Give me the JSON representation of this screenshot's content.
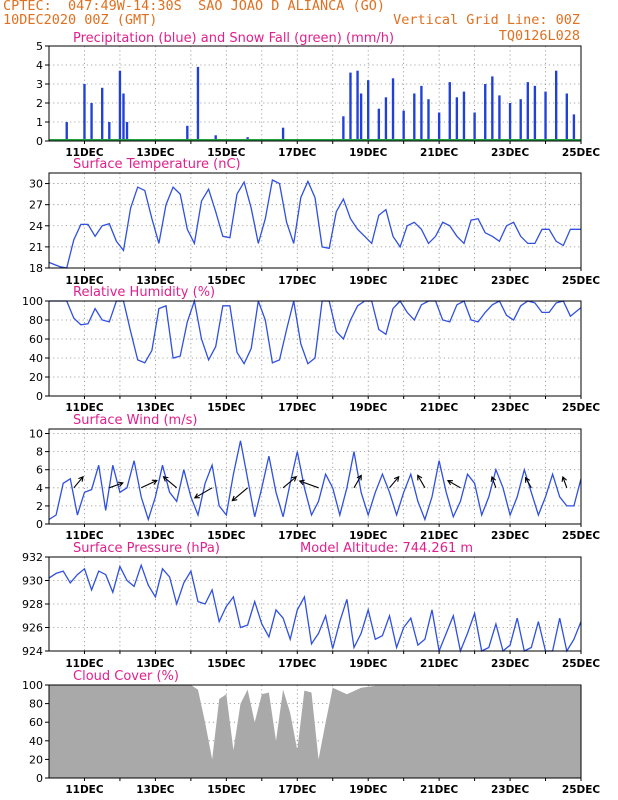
{
  "header": {
    "left_line1": "CPTEC:  047:49W-14:30S  SAO JOAO D ALIANCA (GO)",
    "left_line2": "10DEC2020 00Z (GMT)",
    "right_line2": "Vertical Grid Line: 00Z",
    "right_line3": "TQ0126L028"
  },
  "colors": {
    "header": "#e07020",
    "title": "#e0208c",
    "line": "#3050e0",
    "precip": "#2040d8",
    "snow": "#20a040",
    "cloud": "#a9a9a9",
    "grid": "#8a8a8a"
  },
  "x_axis": {
    "start": "2020-12-10T00:00Z",
    "end": "2020-12-25T00:00Z",
    "tick_labels": [
      "11DEC",
      "13DEC",
      "15DEC",
      "17DEC",
      "19DEC",
      "21DEC",
      "23DEC",
      "25DEC"
    ]
  },
  "chart_data": [
    {
      "type": "bar",
      "title": "Precipitation (blue) and Snow Fall (green) (mm/h)",
      "ylim": [
        0,
        5
      ],
      "yticks": [
        "0",
        "1",
        "2",
        "3",
        "4",
        "5"
      ],
      "series": [
        {
          "name": "Precipitation",
          "color": "#2040d8",
          "x_days": [
            0.5,
            1.0,
            1.2,
            1.5,
            1.7,
            2.0,
            2.1,
            2.2,
            3.9,
            4.2,
            4.7,
            5.6,
            6.6,
            8.3,
            8.5,
            8.7,
            8.8,
            9.0,
            9.3,
            9.5,
            9.7,
            10.0,
            10.3,
            10.5,
            10.7,
            11.0,
            11.3,
            11.5,
            11.7,
            12.0,
            12.3,
            12.5,
            12.7,
            13.0,
            13.3,
            13.5,
            13.7,
            14.0,
            14.3,
            14.6,
            14.8
          ],
          "values": [
            1.0,
            3.0,
            2.0,
            2.8,
            1.0,
            3.7,
            2.5,
            1.0,
            0.8,
            3.9,
            0.3,
            0.2,
            0.7,
            1.3,
            3.6,
            3.7,
            2.5,
            3.2,
            1.7,
            2.3,
            3.3,
            1.6,
            2.5,
            2.9,
            2.2,
            1.5,
            3.1,
            2.3,
            2.6,
            1.5,
            3.0,
            3.4,
            2.4,
            2.0,
            2.2,
            3.1,
            2.9,
            2.6,
            3.7,
            2.5,
            1.4
          ]
        },
        {
          "name": "Snow Fall",
          "color": "#20a040",
          "values": [
            0
          ]
        }
      ]
    },
    {
      "type": "line",
      "title": "Surface Temperature (nC)",
      "ylim": [
        18,
        31.5
      ],
      "yticks": [
        "18",
        "21",
        "24",
        "27",
        "30"
      ],
      "x_days": [
        0,
        0.3,
        0.5,
        0.7,
        0.9,
        1.1,
        1.3,
        1.5,
        1.7,
        1.9,
        2.1,
        2.3,
        2.5,
        2.7,
        2.9,
        3.1,
        3.3,
        3.5,
        3.7,
        3.9,
        4.1,
        4.3,
        4.5,
        4.7,
        4.9,
        5.1,
        5.3,
        5.5,
        5.7,
        5.9,
        6.1,
        6.3,
        6.5,
        6.7,
        6.9,
        7.1,
        7.3,
        7.5,
        7.7,
        7.9,
        8.1,
        8.3,
        8.5,
        8.7,
        8.9,
        9.1,
        9.3,
        9.5,
        9.7,
        9.9,
        10.1,
        10.3,
        10.5,
        10.7,
        10.9,
        11.1,
        11.3,
        11.5,
        11.7,
        11.9,
        12.1,
        12.3,
        12.5,
        12.7,
        12.9,
        13.1,
        13.3,
        13.5,
        13.7,
        13.9,
        14.1,
        14.3,
        14.5,
        14.7,
        15.0
      ],
      "values": [
        18.8,
        18.2,
        18.0,
        22.0,
        24.2,
        24.2,
        22.5,
        24.0,
        24.3,
        21.8,
        20.5,
        26.5,
        29.5,
        29.0,
        25.0,
        21.5,
        27.0,
        29.5,
        28.5,
        23.5,
        21.5,
        27.5,
        29.2,
        26.0,
        22.5,
        22.3,
        28.5,
        30.2,
        26.5,
        21.5,
        25.0,
        30.5,
        30.0,
        24.5,
        21.5,
        28.0,
        30.3,
        28.0,
        21.0,
        20.8,
        26.0,
        27.8,
        25.0,
        23.5,
        22.5,
        21.5,
        25.5,
        26.3,
        22.5,
        21.0,
        24.0,
        24.5,
        23.5,
        21.5,
        22.5,
        24.5,
        24.0,
        22.5,
        21.5,
        24.8,
        25.0,
        23.0,
        22.5,
        21.8,
        24.0,
        24.5,
        22.5,
        21.5,
        21.5,
        23.5,
        23.5,
        21.8,
        21.2,
        23.5,
        23.5
      ]
    },
    {
      "type": "line",
      "title": "Relative Humidity (%)",
      "ylim": [
        0,
        100
      ],
      "yticks": [
        "0",
        "20",
        "40",
        "60",
        "80",
        "100"
      ],
      "x_days": [
        0,
        0.3,
        0.5,
        0.7,
        0.9,
        1.1,
        1.3,
        1.5,
        1.7,
        1.9,
        2.1,
        2.3,
        2.5,
        2.7,
        2.9,
        3.1,
        3.3,
        3.5,
        3.7,
        3.9,
        4.1,
        4.3,
        4.5,
        4.7,
        4.9,
        5.1,
        5.3,
        5.5,
        5.7,
        5.9,
        6.1,
        6.3,
        6.5,
        6.7,
        6.9,
        7.1,
        7.3,
        7.5,
        7.7,
        7.9,
        8.1,
        8.3,
        8.5,
        8.7,
        8.9,
        9.1,
        9.3,
        9.5,
        9.7,
        9.9,
        10.1,
        10.3,
        10.5,
        10.7,
        10.9,
        11.1,
        11.3,
        11.5,
        11.7,
        11.9,
        12.1,
        12.3,
        12.5,
        12.7,
        12.9,
        13.1,
        13.3,
        13.5,
        13.7,
        13.9,
        14.1,
        14.3,
        14.5,
        14.7,
        15.0
      ],
      "values": [
        100,
        100,
        100,
        82,
        75,
        76,
        92,
        80,
        78,
        100,
        100,
        68,
        38,
        35,
        48,
        92,
        95,
        40,
        42,
        78,
        100,
        60,
        38,
        52,
        95,
        95,
        46,
        34,
        50,
        100,
        80,
        35,
        38,
        70,
        100,
        55,
        34,
        40,
        100,
        100,
        68,
        60,
        80,
        95,
        100,
        100,
        70,
        65,
        92,
        100,
        88,
        80,
        96,
        100,
        100,
        80,
        78,
        96,
        100,
        80,
        78,
        88,
        96,
        100,
        85,
        80,
        95,
        100,
        98,
        88,
        88,
        98,
        100,
        84,
        93
      ]
    },
    {
      "type": "line",
      "title": "Surface Wind (m/s)",
      "ylim": [
        0,
        10.5
      ],
      "yticks": [
        "0",
        "2",
        "4",
        "6",
        "8",
        "10"
      ],
      "x_days": [
        0,
        0.2,
        0.4,
        0.6,
        0.8,
        1.0,
        1.2,
        1.4,
        1.6,
        1.8,
        2.0,
        2.2,
        2.4,
        2.6,
        2.8,
        3.0,
        3.2,
        3.4,
        3.6,
        3.8,
        4.0,
        4.2,
        4.4,
        4.6,
        4.8,
        5.0,
        5.2,
        5.4,
        5.6,
        5.8,
        6.0,
        6.2,
        6.4,
        6.6,
        6.8,
        7.0,
        7.2,
        7.4,
        7.6,
        7.8,
        8.0,
        8.2,
        8.4,
        8.6,
        8.8,
        9.0,
        9.2,
        9.4,
        9.6,
        9.8,
        10.0,
        10.2,
        10.4,
        10.6,
        10.8,
        11.0,
        11.2,
        11.4,
        11.6,
        11.8,
        12.0,
        12.2,
        12.4,
        12.6,
        12.8,
        13.0,
        13.2,
        13.4,
        13.6,
        13.8,
        14.0,
        14.2,
        14.4,
        14.6,
        14.8,
        15.0
      ],
      "values": [
        0.5,
        1.0,
        4.5,
        5.0,
        1.0,
        3.5,
        3.8,
        6.5,
        1.5,
        6.5,
        3.5,
        4.0,
        7.0,
        3.0,
        0.5,
        3.0,
        6.5,
        3.5,
        2.5,
        6.0,
        3.0,
        1.0,
        4.5,
        6.5,
        2.0,
        1.0,
        5.5,
        9.2,
        5.0,
        0.8,
        4.0,
        7.5,
        3.5,
        0.8,
        4.5,
        8.0,
        4.0,
        1.0,
        2.5,
        5.5,
        4.0,
        1.0,
        4.0,
        8.0,
        3.5,
        1.0,
        3.5,
        5.5,
        3.5,
        1.0,
        3.5,
        5.5,
        2.5,
        0.5,
        3.0,
        7.0,
        3.5,
        0.8,
        2.5,
        5.5,
        4.5,
        1.0,
        3.0,
        6.0,
        4.0,
        1.0,
        3.0,
        6.0,
        3.5,
        1.0,
        3.0,
        5.5,
        3.0,
        2.0,
        2.0,
        5.0
      ],
      "vectors": [
        {
          "x": 0.7,
          "speed": 3,
          "dir_deg": 50
        },
        {
          "x": 1.7,
          "speed": 3,
          "dir_deg": 20
        },
        {
          "x": 2.6,
          "speed": 4,
          "dir_deg": 25
        },
        {
          "x": 3.6,
          "speed": 4,
          "dir_deg": 140
        },
        {
          "x": 4.6,
          "speed": 5,
          "dir_deg": 210
        },
        {
          "x": 5.6,
          "speed": 5,
          "dir_deg": 220
        },
        {
          "x": 6.6,
          "speed": 4,
          "dir_deg": 40
        },
        {
          "x": 7.6,
          "speed": 5,
          "dir_deg": 160
        },
        {
          "x": 8.6,
          "speed": 3,
          "dir_deg": 60
        },
        {
          "x": 9.6,
          "speed": 3,
          "dir_deg": 50
        },
        {
          "x": 10.6,
          "speed": 3,
          "dir_deg": 120
        },
        {
          "x": 11.6,
          "speed": 3,
          "dir_deg": 150
        },
        {
          "x": 12.6,
          "speed": 2,
          "dir_deg": 110
        },
        {
          "x": 13.6,
          "speed": 2,
          "dir_deg": 120
        },
        {
          "x": 14.6,
          "speed": 2,
          "dir_deg": 110
        }
      ]
    },
    {
      "type": "line",
      "title": "Surface Pressure (hPa)",
      "annotation": "Model Altitude:  744.261  m",
      "ylim": [
        924,
        932
      ],
      "yticks": [
        "924",
        "926",
        "928",
        "930",
        "932"
      ],
      "x_days": [
        0,
        0.2,
        0.4,
        0.6,
        0.8,
        1.0,
        1.2,
        1.4,
        1.6,
        1.8,
        2.0,
        2.2,
        2.4,
        2.6,
        2.8,
        3.0,
        3.2,
        3.4,
        3.6,
        3.8,
        4.0,
        4.2,
        4.4,
        4.6,
        4.8,
        5.0,
        5.2,
        5.4,
        5.6,
        5.8,
        6.0,
        6.2,
        6.4,
        6.6,
        6.8,
        7.0,
        7.2,
        7.4,
        7.6,
        7.8,
        8.0,
        8.2,
        8.4,
        8.6,
        8.8,
        9.0,
        9.2,
        9.4,
        9.6,
        9.8,
        10.0,
        10.2,
        10.4,
        10.6,
        10.8,
        11.0,
        11.2,
        11.4,
        11.6,
        11.8,
        12.0,
        12.2,
        12.4,
        12.6,
        12.8,
        13.0,
        13.2,
        13.4,
        13.6,
        13.8,
        14.0,
        14.2,
        14.4,
        14.6,
        14.8,
        15.0
      ],
      "values": [
        930.2,
        930.6,
        930.8,
        929.8,
        930.5,
        931.0,
        929.2,
        930.8,
        930.5,
        929.0,
        931.2,
        930.0,
        929.5,
        931.3,
        929.6,
        928.6,
        931.0,
        930.3,
        928.0,
        929.8,
        930.8,
        928.2,
        928.0,
        929.2,
        926.5,
        927.8,
        928.6,
        926.0,
        926.2,
        928.2,
        926.3,
        925.2,
        927.5,
        926.8,
        925.0,
        927.5,
        928.6,
        924.6,
        925.5,
        927.0,
        924.2,
        926.5,
        928.4,
        924.3,
        925.5,
        927.5,
        925.0,
        925.3,
        927.0,
        924.3,
        926.0,
        926.8,
        924.5,
        925.0,
        927.5,
        924.0,
        925.5,
        927.0,
        924.0,
        925.5,
        927.2,
        924.0,
        924.3,
        926.3,
        924.0,
        924.5,
        926.8,
        924.0,
        924.3,
        926.5,
        924.0,
        924.0,
        926.8,
        924.0,
        925.0,
        926.5
      ]
    },
    {
      "type": "area",
      "title": "Cloud Cover (%)",
      "ylim": [
        0,
        100
      ],
      "yticks": [
        "0",
        "20",
        "40",
        "60",
        "80",
        "100"
      ],
      "x_days": [
        0,
        2.0,
        3.0,
        4.0,
        4.2,
        4.4,
        4.6,
        4.8,
        5.0,
        5.2,
        5.4,
        5.6,
        5.8,
        6.0,
        6.2,
        6.4,
        6.6,
        6.8,
        7.0,
        7.2,
        7.4,
        7.6,
        7.8,
        8.0,
        8.4,
        8.8,
        9.2,
        15.0
      ],
      "values": [
        100,
        100,
        100,
        100,
        95,
        60,
        20,
        85,
        90,
        30,
        80,
        95,
        60,
        90,
        92,
        40,
        95,
        70,
        30,
        94,
        92,
        20,
        60,
        97,
        90,
        97,
        99,
        99
      ]
    }
  ]
}
